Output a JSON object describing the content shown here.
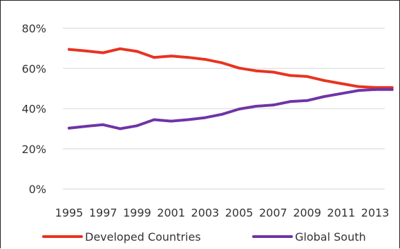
{
  "chart_data": {
    "type": "line",
    "title": "",
    "xlabel": "",
    "ylabel": "",
    "ylim": [
      0,
      80
    ],
    "yticks": [
      "0%",
      "20%",
      "40%",
      "60%",
      "80%"
    ],
    "ytick_values": [
      0,
      20,
      40,
      60,
      80
    ],
    "xlim": [
      1995,
      2014
    ],
    "xticks": [
      "1995",
      "1997",
      "1999",
      "2001",
      "2003",
      "2005",
      "2007",
      "2009",
      "2011",
      "2013"
    ],
    "xtick_values": [
      1995,
      1997,
      1999,
      2001,
      2003,
      2005,
      2007,
      2009,
      2011,
      2013
    ],
    "grid": true,
    "legend_position": "bottom",
    "series": [
      {
        "name": "Developed Countries",
        "color": "#e8331f",
        "x": [
          1995,
          1996,
          1997,
          1998,
          1999,
          2000,
          2001,
          2002,
          2003,
          2004,
          2005,
          2006,
          2007,
          2008,
          2009,
          2010,
          2011,
          2012,
          2013,
          2014
        ],
        "values": [
          69.5,
          68.7,
          67.8,
          69.8,
          68.5,
          65.5,
          66.2,
          65.5,
          64.5,
          62.8,
          60.2,
          58.8,
          58.2,
          56.5,
          56.0,
          54.0,
          52.5,
          51.0,
          50.5,
          50.5
        ]
      },
      {
        "name": "Global South",
        "color": "#6e35a7",
        "x": [
          1995,
          1996,
          1997,
          1998,
          1999,
          2000,
          2001,
          2002,
          2003,
          2004,
          2005,
          2006,
          2007,
          2008,
          2009,
          2010,
          2011,
          2012,
          2013,
          2014
        ],
        "values": [
          30.3,
          31.2,
          32.0,
          30.0,
          31.5,
          34.5,
          33.8,
          34.5,
          35.5,
          37.2,
          39.8,
          41.2,
          41.8,
          43.5,
          44.0,
          46.0,
          47.5,
          49.0,
          49.5,
          49.5
        ]
      }
    ]
  }
}
